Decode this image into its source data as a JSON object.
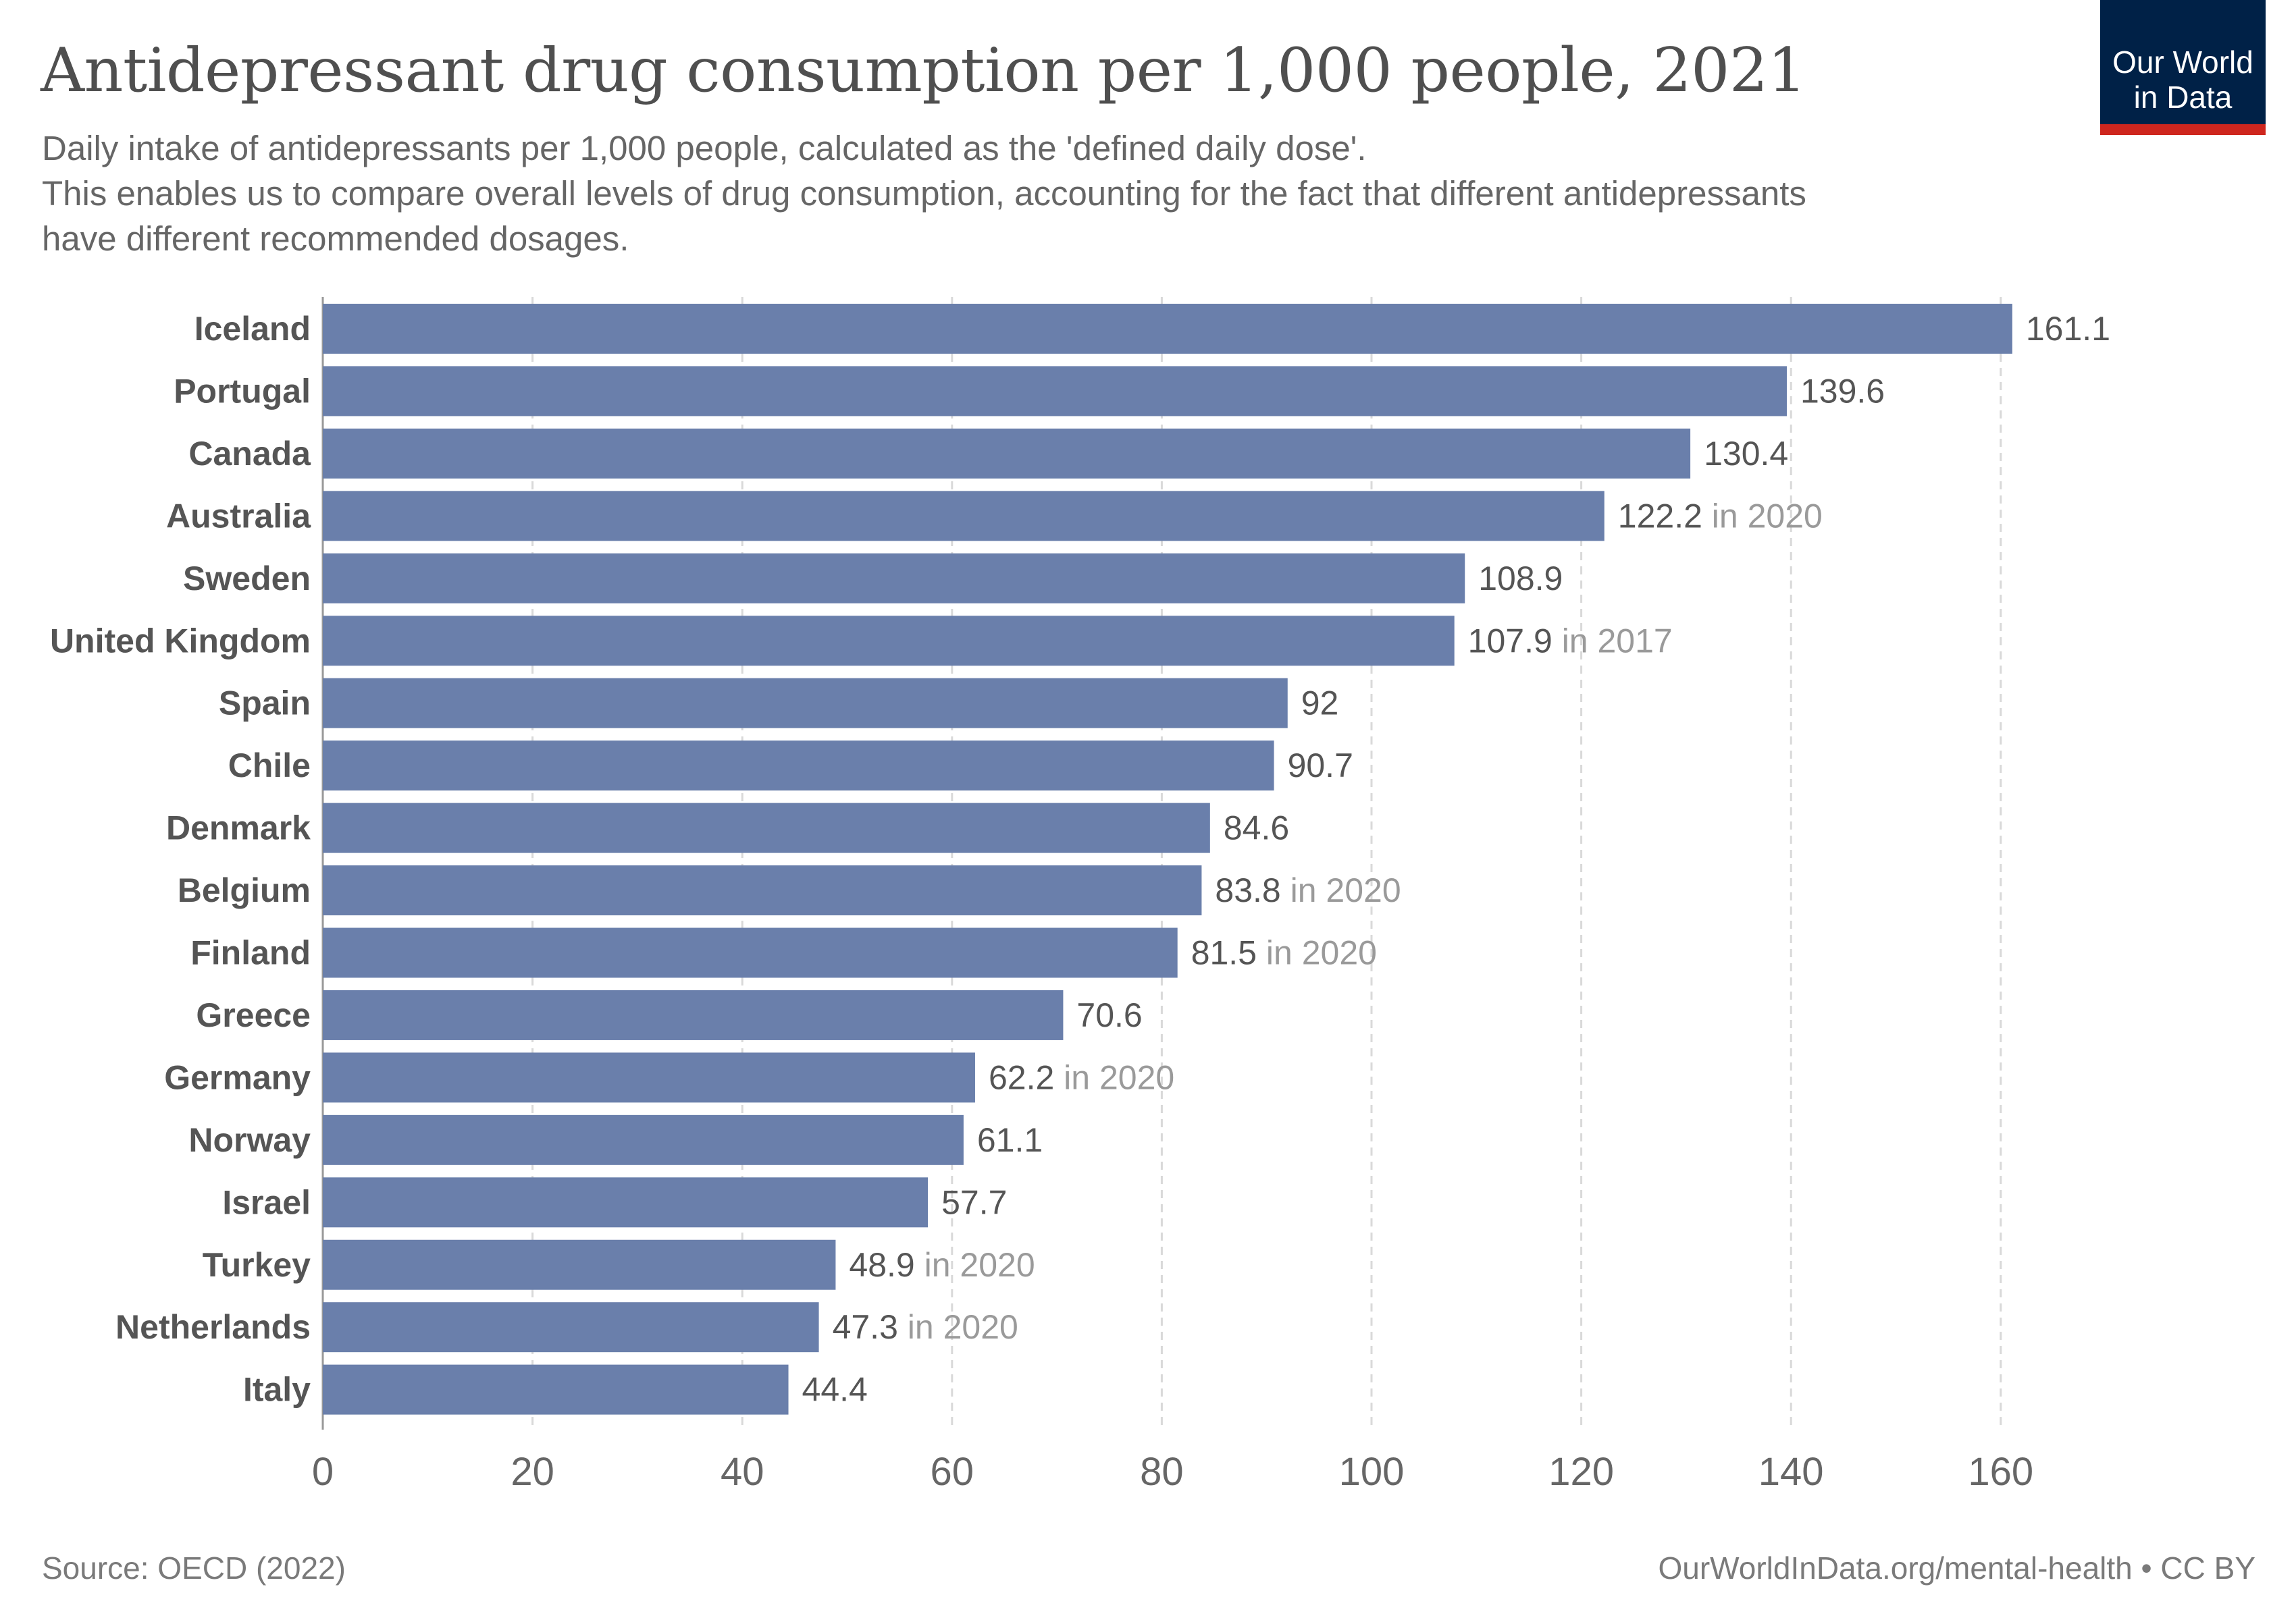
{
  "header": {
    "title": "Antidepressant drug consumption per 1,000 people, 2021",
    "subtitle_lines": [
      "Daily intake of antidepressants per 1,000 people, calculated as the 'defined daily dose'.",
      "This enables us to compare overall levels of drug consumption, accounting for the fact that different antidepressants",
      "have different recommended dosages."
    ]
  },
  "logo": {
    "line1": "Our World",
    "line2": "in Data"
  },
  "footer": {
    "source": "Source: OECD (2022)",
    "credit": "OurWorldInData.org/mental-health • CC BY"
  },
  "colors": {
    "bar": "#6a7fab",
    "logo_bg": "#002147",
    "logo_accent": "#ce261e"
  },
  "chart_data": {
    "type": "bar",
    "orientation": "horizontal",
    "categories": [
      "Iceland",
      "Portugal",
      "Canada",
      "Australia",
      "Sweden",
      "United Kingdom",
      "Spain",
      "Chile",
      "Denmark",
      "Belgium",
      "Finland",
      "Greece",
      "Germany",
      "Norway",
      "Israel",
      "Turkey",
      "Netherlands",
      "Italy"
    ],
    "values": [
      161.1,
      139.6,
      130.4,
      122.2,
      108.9,
      107.9,
      92,
      90.7,
      84.6,
      83.8,
      81.5,
      70.6,
      62.2,
      61.1,
      57.7,
      48.9,
      47.3,
      44.4
    ],
    "value_labels": [
      "161.1",
      "139.6",
      "130.4",
      "122.2",
      "108.9",
      "107.9",
      "92",
      "90.7",
      "84.6",
      "83.8",
      "81.5",
      "70.6",
      "62.2",
      "61.1",
      "57.7",
      "48.9",
      "47.3",
      "44.4"
    ],
    "year_notes": [
      "",
      "",
      "",
      "in 2020",
      "",
      "in 2017",
      "",
      "",
      "",
      "in 2020",
      "in 2020",
      "",
      "in 2020",
      "",
      "",
      "in 2020",
      "in 2020",
      ""
    ],
    "x_ticks": [
      0,
      20,
      40,
      60,
      80,
      100,
      120,
      140,
      160
    ],
    "xlim": [
      0,
      161.1
    ],
    "grid": true,
    "xlabel": "",
    "ylabel": ""
  }
}
